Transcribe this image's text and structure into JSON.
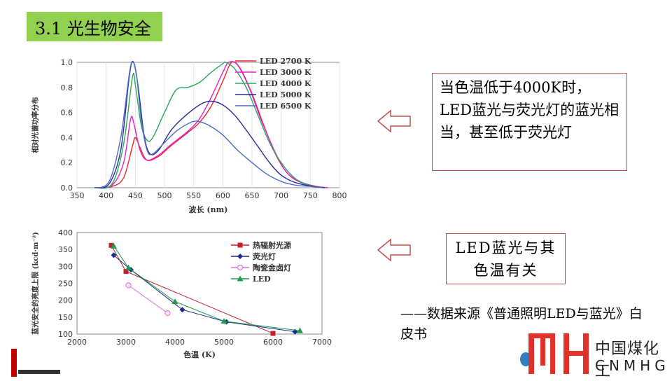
{
  "title": "3.1 光生物安全",
  "note1": "当色温低于4000K时，LED蓝光与荧光灯的蓝光相当，甚至低于荧光灯",
  "note2": "LED蓝光与其色温有关",
  "source": "——数据来源《普通照明LED与蓝光》白皮书",
  "logo": {
    "cn": "中国煤化工",
    "en": "CNMHG",
    "mark_color": "#e0322b"
  },
  "colors": {
    "accent_green": "#92d050",
    "note_border": "#c0504d"
  },
  "chart_data": [
    {
      "type": "line",
      "ylabel": "相对光谱功率分布",
      "xlabel": "波长 (nm)",
      "xlim": [
        350,
        800
      ],
      "ylim": [
        0,
        1.0
      ],
      "x_ticks": [
        "350",
        "400",
        "450",
        "500",
        "550",
        "600",
        "650",
        "700",
        "750",
        "800"
      ],
      "y_ticks": [
        "0.0",
        "0.2",
        "0.4",
        "0.6",
        "0.8",
        "1.0"
      ],
      "legend": "top-right",
      "series": [
        {
          "name": "LED 2700 K",
          "color": "#e8262b",
          "points": [
            [
              380,
              0
            ],
            [
              410,
              0.01
            ],
            [
              430,
              0.08
            ],
            [
              445,
              0.33
            ],
            [
              450,
              0.4
            ],
            [
              458,
              0.32
            ],
            [
              470,
              0.22
            ],
            [
              490,
              0.25
            ],
            [
              510,
              0.33
            ],
            [
              540,
              0.44
            ],
            [
              560,
              0.52
            ],
            [
              580,
              0.65
            ],
            [
              600,
              0.85
            ],
            [
              615,
              1.0
            ],
            [
              630,
              0.95
            ],
            [
              650,
              0.75
            ],
            [
              670,
              0.5
            ],
            [
              690,
              0.27
            ],
            [
              710,
              0.12
            ],
            [
              730,
              0.05
            ],
            [
              760,
              0.01
            ],
            [
              780,
              0
            ]
          ]
        },
        {
          "name": "LED 3000 K",
          "color": "#e020c8",
          "points": [
            [
              380,
              0
            ],
            [
              410,
              0.02
            ],
            [
              430,
              0.2
            ],
            [
              442,
              0.55
            ],
            [
              448,
              0.5
            ],
            [
              458,
              0.3
            ],
            [
              470,
              0.22
            ],
            [
              490,
              0.26
            ],
            [
              510,
              0.34
            ],
            [
              540,
              0.45
            ],
            [
              560,
              0.55
            ],
            [
              580,
              0.72
            ],
            [
              600,
              0.92
            ],
            [
              610,
              1.0
            ],
            [
              625,
              0.98
            ],
            [
              645,
              0.8
            ],
            [
              665,
              0.55
            ],
            [
              690,
              0.28
            ],
            [
              710,
              0.12
            ],
            [
              735,
              0.04
            ],
            [
              760,
              0.01
            ],
            [
              780,
              0
            ]
          ]
        },
        {
          "name": "LED 4000 K",
          "color": "#2ca660",
          "points": [
            [
              380,
              0
            ],
            [
              410,
              0.03
            ],
            [
              430,
              0.35
            ],
            [
              445,
              0.88
            ],
            [
              450,
              0.82
            ],
            [
              460,
              0.5
            ],
            [
              470,
              0.38
            ],
            [
              480,
              0.4
            ],
            [
              500,
              0.6
            ],
            [
              520,
              0.78
            ],
            [
              540,
              0.8
            ],
            [
              560,
              0.84
            ],
            [
              580,
              0.92
            ],
            [
              600,
              0.99
            ],
            [
              605,
              1.0
            ],
            [
              620,
              0.95
            ],
            [
              640,
              0.8
            ],
            [
              660,
              0.58
            ],
            [
              680,
              0.36
            ],
            [
              700,
              0.2
            ],
            [
              725,
              0.07
            ],
            [
              755,
              0.01
            ],
            [
              775,
              0
            ]
          ]
        },
        {
          "name": "LED 5000 K",
          "color": "#2b2b9a",
          "points": [
            [
              380,
              0
            ],
            [
              405,
              0.03
            ],
            [
              425,
              0.3
            ],
            [
              440,
              0.9
            ],
            [
              447,
              1.0
            ],
            [
              455,
              0.8
            ],
            [
              465,
              0.42
            ],
            [
              475,
              0.27
            ],
            [
              490,
              0.3
            ],
            [
              510,
              0.45
            ],
            [
              530,
              0.55
            ],
            [
              560,
              0.66
            ],
            [
              580,
              0.69
            ],
            [
              600,
              0.66
            ],
            [
              620,
              0.58
            ],
            [
              640,
              0.46
            ],
            [
              660,
              0.33
            ],
            [
              680,
              0.2
            ],
            [
              700,
              0.1
            ],
            [
              725,
              0.04
            ],
            [
              755,
              0.01
            ],
            [
              775,
              0
            ]
          ]
        },
        {
          "name": "LED 6500 K",
          "color": "#4a6fc8",
          "points": [
            [
              380,
              0
            ],
            [
              405,
              0.05
            ],
            [
              425,
              0.4
            ],
            [
              440,
              0.92
            ],
            [
              446,
              1.0
            ],
            [
              452,
              0.9
            ],
            [
              460,
              0.55
            ],
            [
              470,
              0.3
            ],
            [
              480,
              0.27
            ],
            [
              500,
              0.36
            ],
            [
              520,
              0.45
            ],
            [
              540,
              0.51
            ],
            [
              555,
              0.53
            ],
            [
              575,
              0.5
            ],
            [
              600,
              0.42
            ],
            [
              625,
              0.3
            ],
            [
              650,
              0.2
            ],
            [
              675,
              0.11
            ],
            [
              700,
              0.05
            ],
            [
              725,
              0.02
            ],
            [
              750,
              0.01
            ],
            [
              770,
              0
            ]
          ]
        }
      ]
    },
    {
      "type": "line",
      "ylabel": "蓝光安全的亮度上限 (kcd·m⁻²)",
      "xlabel": "色温 (K)",
      "xlim": [
        2000,
        7000
      ],
      "ylim": [
        100,
        400
      ],
      "x_ticks": [
        "2000",
        "3000",
        "4000",
        "5000",
        "6000",
        "7000"
      ],
      "y_ticks": [
        "100",
        "150",
        "200",
        "250",
        "300",
        "350",
        "400"
      ],
      "legend": "top-right",
      "series": [
        {
          "name": "热辐射光源",
          "color": "#c0202a",
          "marker": "square",
          "points": [
            [
              2700,
              362
            ],
            [
              3000,
              285
            ],
            [
              6000,
              102
            ]
          ]
        },
        {
          "name": "荧光灯",
          "color": "#1f2a8a",
          "marker": "diamond",
          "points": [
            [
              2750,
              333
            ],
            [
              3100,
              290
            ],
            [
              4150,
              172
            ],
            [
              5050,
              136
            ],
            [
              6450,
              107
            ]
          ]
        },
        {
          "name": "陶瓷金卤灯",
          "color": "#e06fd8",
          "marker": "circle",
          "points": [
            [
              3050,
              244
            ],
            [
              3850,
              162
            ]
          ]
        },
        {
          "name": "LED",
          "color": "#1d9a4a",
          "marker": "triangle",
          "points": [
            [
              2750,
              360
            ],
            [
              3050,
              296
            ],
            [
              4000,
              196
            ],
            [
              5000,
              138
            ],
            [
              6550,
              110
            ]
          ]
        }
      ]
    }
  ]
}
